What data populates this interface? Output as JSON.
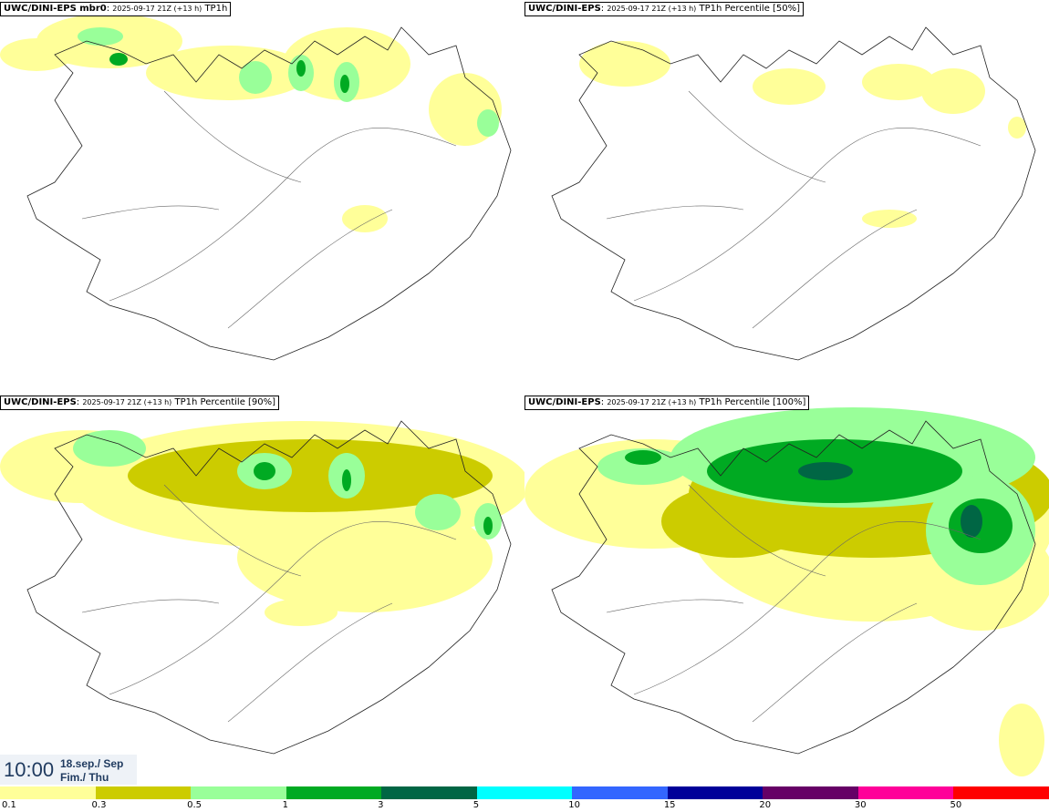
{
  "panels": [
    {
      "prefix": "UWC/DINI-EPS mbr0",
      "meta": "2025-09-17 21Z (+13 h)",
      "field": "TP1h",
      "coverage": "low"
    },
    {
      "prefix": "UWC/DINI-EPS",
      "meta": "2025-09-17 21Z (+13 h)",
      "field": "TP1h Percentile [50%]",
      "coverage": "min"
    },
    {
      "prefix": "UWC/DINI-EPS",
      "meta": "2025-09-17 21Z (+13 h)",
      "field": "TP1h Percentile [90%]",
      "coverage": "mid"
    },
    {
      "prefix": "UWC/DINI-EPS",
      "meta": "2025-09-17 21Z (+13 h)",
      "field": "TP1h Percentile [100%]",
      "coverage": "high"
    }
  ],
  "time": {
    "clock": "10:00",
    "date_line1": "18.sep./ Sep",
    "date_line2": "Fim./ Thu"
  },
  "colorbar": {
    "labels": [
      "0.1",
      "0.3",
      "0.5",
      "1",
      "3",
      "5",
      "10",
      "15",
      "20",
      "30",
      "50"
    ],
    "colors": [
      "#ffff99",
      "#cccc00",
      "#99ff99",
      "#00aa22",
      "#006644",
      "#00ffff",
      "#3366ff",
      "#000099",
      "#660066",
      "#ff0099",
      "#ff0000"
    ]
  }
}
